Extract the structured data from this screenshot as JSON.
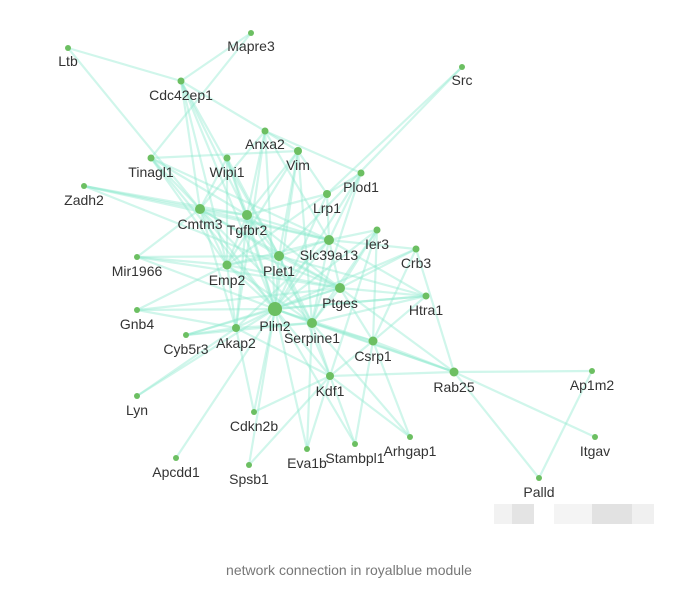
{
  "caption": "network connection in royalblue module",
  "colors": {
    "node": "#6cbf62",
    "edge": "#8fe9cf",
    "label": "#333333",
    "caption": "#777777"
  },
  "nodes": [
    {
      "id": "Ltb",
      "size": 3
    },
    {
      "id": "Mapre3",
      "size": 3
    },
    {
      "id": "Cdc42ep1",
      "size": 3.5
    },
    {
      "id": "Src",
      "size": 3
    },
    {
      "id": "Anxa2",
      "size": 3.5
    },
    {
      "id": "Vim",
      "size": 4
    },
    {
      "id": "Tinagl1",
      "size": 3.5
    },
    {
      "id": "Wipi1",
      "size": 3.5
    },
    {
      "id": "Plod1",
      "size": 3.5
    },
    {
      "id": "Zadh2",
      "size": 3
    },
    {
      "id": "Lrp1",
      "size": 4
    },
    {
      "id": "Cmtm3",
      "size": 5
    },
    {
      "id": "Tgfbr2",
      "size": 5
    },
    {
      "id": "Ier3",
      "size": 3.5
    },
    {
      "id": "Slc39a13",
      "size": 5
    },
    {
      "id": "Crb3",
      "size": 3.5
    },
    {
      "id": "Mir1966",
      "size": 3
    },
    {
      "id": "Emp2",
      "size": 4.5
    },
    {
      "id": "Plet1",
      "size": 5
    },
    {
      "id": "Ptges",
      "size": 5
    },
    {
      "id": "Htra1",
      "size": 3.5
    },
    {
      "id": "Gnb4",
      "size": 3
    },
    {
      "id": "Plin2",
      "size": 7
    },
    {
      "id": "Serpine1",
      "size": 5
    },
    {
      "id": "Akap2",
      "size": 4
    },
    {
      "id": "Cyb5r3",
      "size": 3
    },
    {
      "id": "Csrp1",
      "size": 4.5
    },
    {
      "id": "Rab25",
      "size": 4.5
    },
    {
      "id": "Ap1m2",
      "size": 3
    },
    {
      "id": "Kdf1",
      "size": 4
    },
    {
      "id": "Lyn",
      "size": 3
    },
    {
      "id": "Cdkn2b",
      "size": 3
    },
    {
      "id": "Itgav",
      "size": 3
    },
    {
      "id": "Arhgap1",
      "size": 3
    },
    {
      "id": "Stambpl1",
      "size": 3
    },
    {
      "id": "Eva1b",
      "size": 3
    },
    {
      "id": "Apcdd1",
      "size": 3
    },
    {
      "id": "Spsb1",
      "size": 3
    },
    {
      "id": "Palld",
      "size": 3
    }
  ],
  "edges": [
    [
      "Ltb",
      "Cdc42ep1"
    ],
    [
      "Ltb",
      "Cmtm3"
    ],
    [
      "Mapre3",
      "Cdc42ep1"
    ],
    [
      "Mapre3",
      "Tinagl1"
    ],
    [
      "Src",
      "Lrp1"
    ],
    [
      "Src",
      "Plet1"
    ],
    [
      "Cdc42ep1",
      "Cmtm3"
    ],
    [
      "Cdc42ep1",
      "Tgfbr2"
    ],
    [
      "Cdc42ep1",
      "Anxa2"
    ],
    [
      "Cdc42ep1",
      "Plet1"
    ],
    [
      "Cdc42ep1",
      "Emp2"
    ],
    [
      "Cdc42ep1",
      "Plin2"
    ],
    [
      "Anxa2",
      "Vim"
    ],
    [
      "Anxa2",
      "Plod1"
    ],
    [
      "Anxa2",
      "Cmtm3"
    ],
    [
      "Anxa2",
      "Plin2"
    ],
    [
      "Anxa2",
      "Slc39a13"
    ],
    [
      "Anxa2",
      "Akap2"
    ],
    [
      "Anxa2",
      "Tgfbr2"
    ],
    [
      "Vim",
      "Tgfbr2"
    ],
    [
      "Vim",
      "Plet1"
    ],
    [
      "Vim",
      "Lrp1"
    ],
    [
      "Vim",
      "Plin2"
    ],
    [
      "Vim",
      "Tinagl1"
    ],
    [
      "Vim",
      "Serpine1"
    ],
    [
      "Vim",
      "Emp2"
    ],
    [
      "Tinagl1",
      "Cmtm3"
    ],
    [
      "Tinagl1",
      "Tgfbr2"
    ],
    [
      "Tinagl1",
      "Plin2"
    ],
    [
      "Tinagl1",
      "Slc39a13"
    ],
    [
      "Tinagl1",
      "Emp2"
    ],
    [
      "Wipi1",
      "Tgfbr2"
    ],
    [
      "Wipi1",
      "Plin2"
    ],
    [
      "Wipi1",
      "Cmtm3"
    ],
    [
      "Wipi1",
      "Emp2"
    ],
    [
      "Wipi1",
      "Plet1"
    ],
    [
      "Plod1",
      "Lrp1"
    ],
    [
      "Plod1",
      "Slc39a13"
    ],
    [
      "Plod1",
      "Plin2"
    ],
    [
      "Plod1",
      "Serpine1"
    ],
    [
      "Zadh2",
      "Cmtm3"
    ],
    [
      "Zadh2",
      "Tgfbr2"
    ],
    [
      "Zadh2",
      "Slc39a13"
    ],
    [
      "Zadh2",
      "Ptges"
    ],
    [
      "Lrp1",
      "Slc39a13"
    ],
    [
      "Lrp1",
      "Plin2"
    ],
    [
      "Lrp1",
      "Tgfbr2"
    ],
    [
      "Lrp1",
      "Emp2"
    ],
    [
      "Cmtm3",
      "Tgfbr2"
    ],
    [
      "Cmtm3",
      "Plin2"
    ],
    [
      "Cmtm3",
      "Plet1"
    ],
    [
      "Cmtm3",
      "Slc39a13"
    ],
    [
      "Cmtm3",
      "Emp2"
    ],
    [
      "Cmtm3",
      "Mir1966"
    ],
    [
      "Cmtm3",
      "Akap2"
    ],
    [
      "Cmtm3",
      "Ptges"
    ],
    [
      "Cmtm3",
      "Serpine1"
    ],
    [
      "Tgfbr2",
      "Plin2"
    ],
    [
      "Tgfbr2",
      "Plet1"
    ],
    [
      "Tgfbr2",
      "Emp2"
    ],
    [
      "Tgfbr2",
      "Slc39a13"
    ],
    [
      "Tgfbr2",
      "Akap2"
    ],
    [
      "Tgfbr2",
      "Ptges"
    ],
    [
      "Tgfbr2",
      "Serpine1"
    ],
    [
      "Ier3",
      "Slc39a13"
    ],
    [
      "Ier3",
      "Plin2"
    ],
    [
      "Ier3",
      "Serpine1"
    ],
    [
      "Ier3",
      "Csrp1"
    ],
    [
      "Ier3",
      "Ptges"
    ],
    [
      "Ier3",
      "Kdf1"
    ],
    [
      "Slc39a13",
      "Plin2"
    ],
    [
      "Slc39a13",
      "Plet1"
    ],
    [
      "Slc39a13",
      "Ptges"
    ],
    [
      "Slc39a13",
      "Crb3"
    ],
    [
      "Slc39a13",
      "Serpine1"
    ],
    [
      "Slc39a13",
      "Htra1"
    ],
    [
      "Slc39a13",
      "Emp2"
    ],
    [
      "Slc39a13",
      "Akap2"
    ],
    [
      "Crb3",
      "Ptges"
    ],
    [
      "Crb3",
      "Csrp1"
    ],
    [
      "Crb3",
      "Rab25"
    ],
    [
      "Crb3",
      "Plin2"
    ],
    [
      "Mir1966",
      "Plin2"
    ],
    [
      "Mir1966",
      "Plet1"
    ],
    [
      "Mir1966",
      "Emp2"
    ],
    [
      "Mir1966",
      "Ptges"
    ],
    [
      "Emp2",
      "Plin2"
    ],
    [
      "Emp2",
      "Plet1"
    ],
    [
      "Emp2",
      "Ptges"
    ],
    [
      "Emp2",
      "Akap2"
    ],
    [
      "Emp2",
      "Serpine1"
    ],
    [
      "Emp2",
      "Gnb4"
    ],
    [
      "Plet1",
      "Plin2"
    ],
    [
      "Plet1",
      "Ptges"
    ],
    [
      "Plet1",
      "Serpine1"
    ],
    [
      "Plet1",
      "Htra1"
    ],
    [
      "Plet1",
      "Kdf1"
    ],
    [
      "Ptges",
      "Plin2"
    ],
    [
      "Ptges",
      "Serpine1"
    ],
    [
      "Ptges",
      "Htra1"
    ],
    [
      "Ptges",
      "Csrp1"
    ],
    [
      "Ptges",
      "Rab25"
    ],
    [
      "Htra1",
      "Plin2"
    ],
    [
      "Htra1",
      "Serpine1"
    ],
    [
      "Htra1",
      "Csrp1"
    ],
    [
      "Gnb4",
      "Plin2"
    ],
    [
      "Gnb4",
      "Akap2"
    ],
    [
      "Gnb4",
      "Ptges"
    ],
    [
      "Plin2",
      "Serpine1"
    ],
    [
      "Plin2",
      "Akap2"
    ],
    [
      "Plin2",
      "Cyb5r3"
    ],
    [
      "Plin2",
      "Csrp1"
    ],
    [
      "Plin2",
      "Rab25"
    ],
    [
      "Plin2",
      "Kdf1"
    ],
    [
      "Plin2",
      "Lyn"
    ],
    [
      "Plin2",
      "Cdkn2b"
    ],
    [
      "Plin2",
      "Apcdd1"
    ],
    [
      "Plin2",
      "Spsb1"
    ],
    [
      "Plin2",
      "Eva1b"
    ],
    [
      "Plin2",
      "Stambpl1"
    ],
    [
      "Plin2",
      "Htra1"
    ],
    [
      "Serpine1",
      "Csrp1"
    ],
    [
      "Serpine1",
      "Rab25"
    ],
    [
      "Serpine1",
      "Kdf1"
    ],
    [
      "Serpine1",
      "Akap2"
    ],
    [
      "Serpine1",
      "Arhgap1"
    ],
    [
      "Serpine1",
      "Eva1b"
    ],
    [
      "Akap2",
      "Cyb5r3"
    ],
    [
      "Akap2",
      "Lyn"
    ],
    [
      "Akap2",
      "Kdf1"
    ],
    [
      "Akap2",
      "Cdkn2b"
    ],
    [
      "Csrp1",
      "Rab25"
    ],
    [
      "Csrp1",
      "Kdf1"
    ],
    [
      "Csrp1",
      "Arhgap1"
    ],
    [
      "Csrp1",
      "Stambpl1"
    ],
    [
      "Rab25",
      "Ap1m2"
    ],
    [
      "Rab25",
      "Itgav"
    ],
    [
      "Rab25",
      "Kdf1"
    ],
    [
      "Rab25",
      "Palld"
    ],
    [
      "Ap1m2",
      "Palld"
    ],
    [
      "Kdf1",
      "Eva1b"
    ],
    [
      "Kdf1",
      "Stambpl1"
    ],
    [
      "Kdf1",
      "Arhgap1"
    ],
    [
      "Kdf1",
      "Cdkn2b"
    ],
    [
      "Kdf1",
      "Spsb1"
    ],
    [
      "Cyb5r3",
      "Serpine1"
    ],
    [
      "Cyb5r3",
      "Ptges"
    ]
  ]
}
